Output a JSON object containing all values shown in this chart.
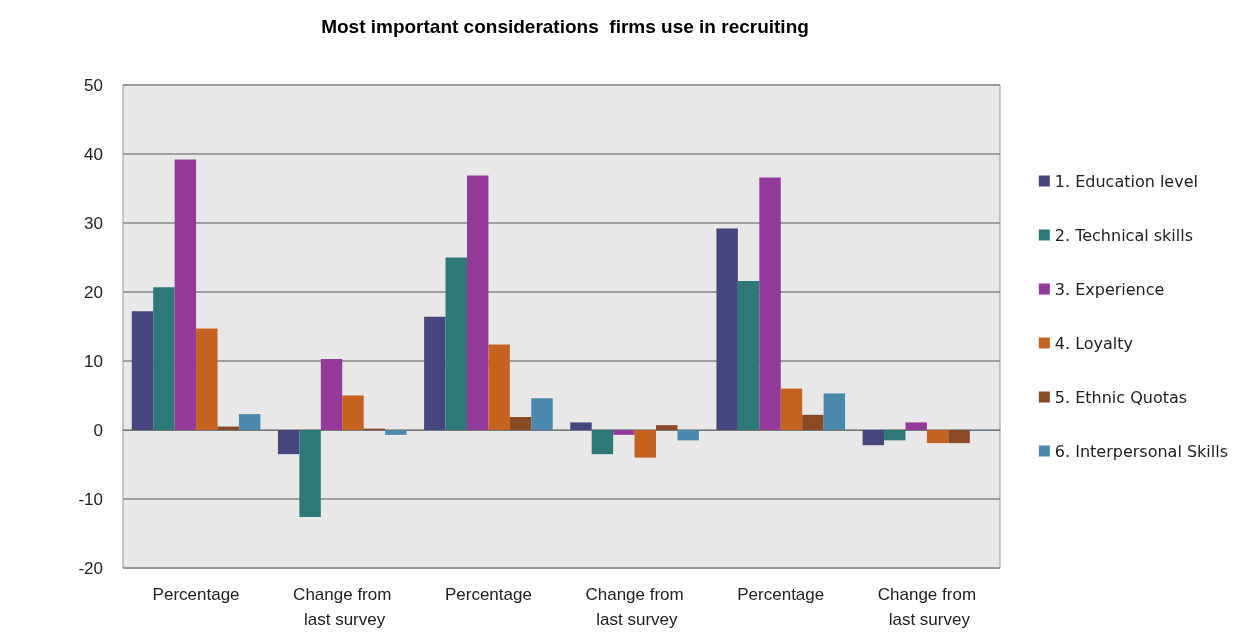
{
  "chart_data": {
    "type": "bar",
    "title": "Most important considerations  firms use in recruiting",
    "categories": [
      "Percentage",
      "Change from last survey",
      "Percentage",
      "Change from last survey",
      "Percentage",
      "Change from last survey"
    ],
    "series": [
      {
        "name": "1. Education level",
        "color": "#46467f",
        "values": [
          17.2,
          -3.5,
          16.4,
          1.1,
          29.2,
          -2.2
        ]
      },
      {
        "name": "2. Technical skills",
        "color": "#2f7878",
        "values": [
          20.7,
          -12.6,
          25.0,
          -3.5,
          21.6,
          -1.5
        ]
      },
      {
        "name": "3. Experience",
        "color": "#943a9a",
        "values": [
          39.2,
          10.3,
          36.9,
          -0.7,
          36.6,
          1.1
        ]
      },
      {
        "name": "4. Loyalty",
        "color": "#c5621f",
        "values": [
          14.7,
          5.0,
          12.4,
          -4.0,
          6.0,
          -1.9
        ]
      },
      {
        "name": "5. Ethnic Quotas",
        "color": "#8a4a25",
        "values": [
          0.5,
          0.2,
          1.9,
          0.7,
          2.2,
          -1.9
        ]
      },
      {
        "name": "6. Interpersonal Skills",
        "color": "#4a88ad",
        "values": [
          2.3,
          -0.7,
          4.6,
          -1.5,
          5.3,
          -0.1
        ]
      }
    ],
    "ylim": [
      -20,
      50
    ],
    "yticks": [
      -20,
      -10,
      0,
      10,
      20,
      30,
      40,
      50
    ],
    "grid": "y",
    "legend": "right"
  }
}
